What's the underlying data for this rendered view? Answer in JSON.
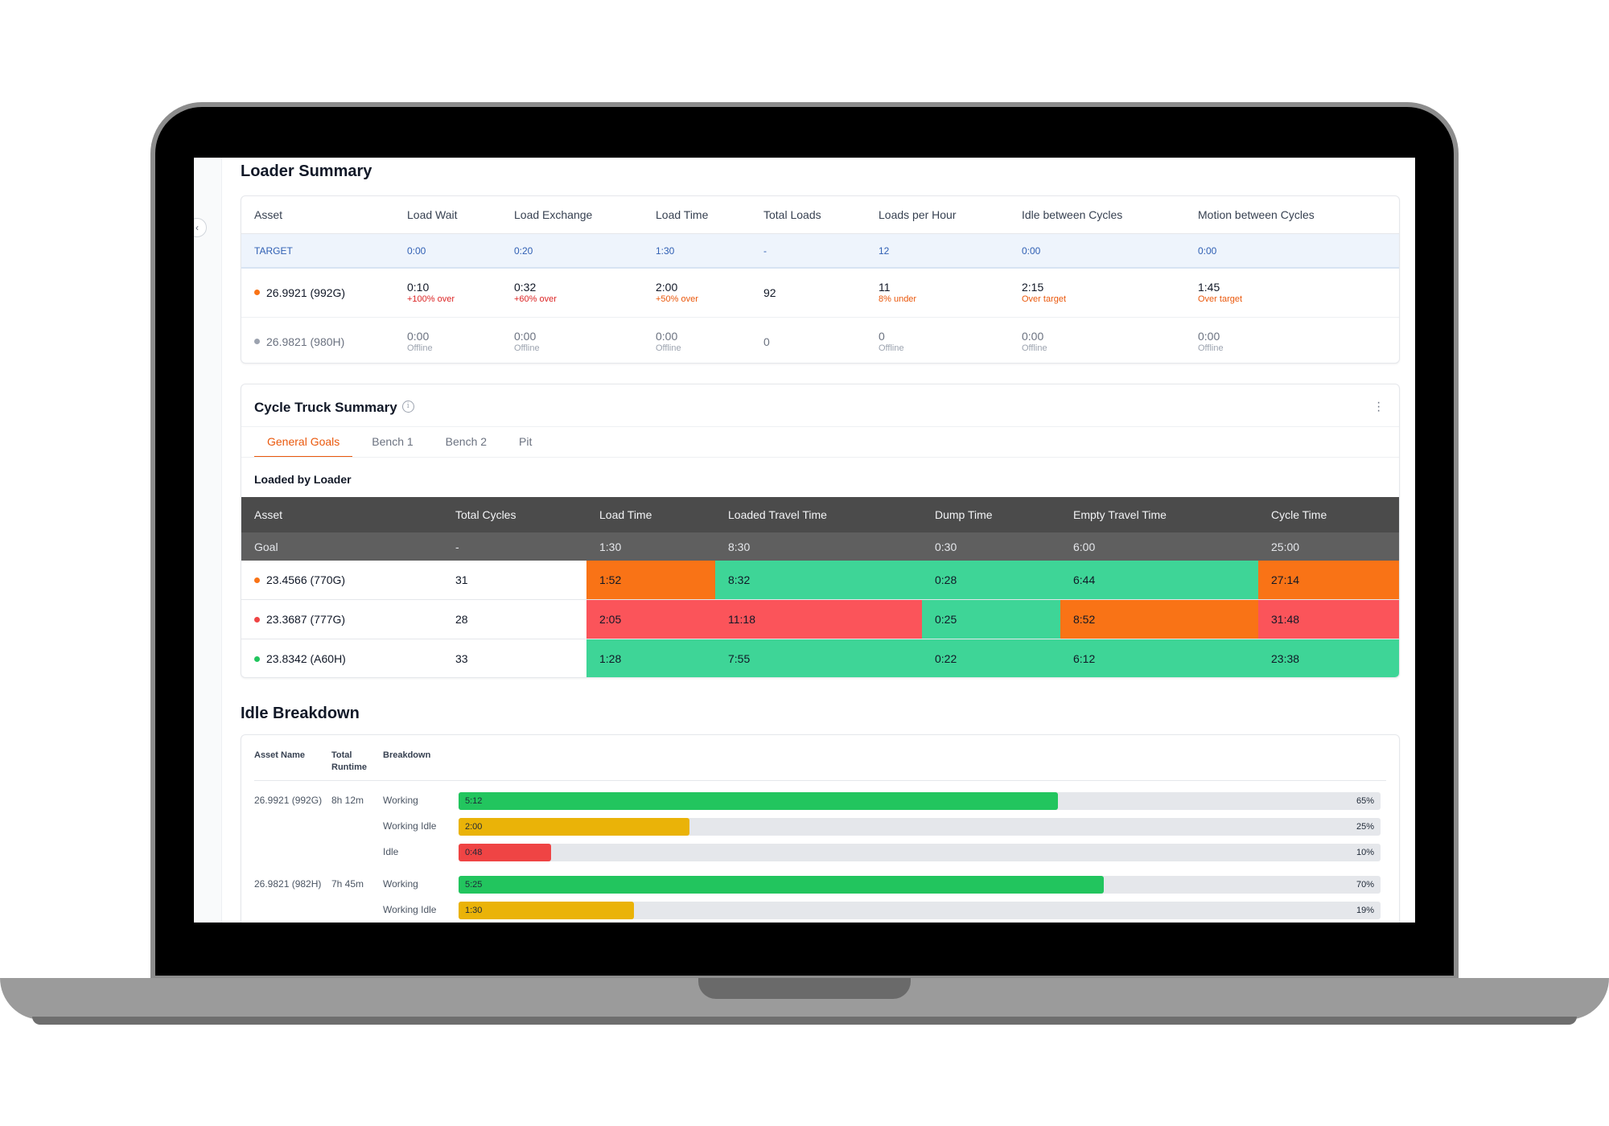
{
  "loader_summary": {
    "title": "Loader Summary",
    "columns": [
      "Asset",
      "Load Wait",
      "Load Exchange",
      "Load Time",
      "Total Loads",
      "Loads per Hour",
      "Idle between Cycles",
      "Motion between Cycles"
    ],
    "target": {
      "label": "TARGET",
      "values": [
        "0:00",
        "0:20",
        "1:30",
        "-",
        "12",
        "0:00",
        "0:00"
      ]
    },
    "rows": [
      {
        "asset": "26.9921 (992G)",
        "status_color": "#f97316",
        "cells": [
          {
            "value": "0:10",
            "note": "+100% over",
            "tone": "over"
          },
          {
            "value": "0:32",
            "note": "+60% over",
            "tone": "over"
          },
          {
            "value": "2:00",
            "note": "+50% over",
            "tone": "orange"
          },
          {
            "value": "92",
            "note": "",
            "tone": ""
          },
          {
            "value": "11",
            "note": "8% under",
            "tone": "orange"
          },
          {
            "value": "2:15",
            "note": "Over target",
            "tone": "orange"
          },
          {
            "value": "1:45",
            "note": "Over target",
            "tone": "orange"
          }
        ]
      },
      {
        "asset": "26.9821 (980H)",
        "status_color": "#9ca3af",
        "cells": [
          {
            "value": "0:00",
            "note": "Offline",
            "tone": "offline"
          },
          {
            "value": "0:00",
            "note": "Offline",
            "tone": "offline"
          },
          {
            "value": "0:00",
            "note": "Offline",
            "tone": "offline"
          },
          {
            "value": "0",
            "note": "",
            "tone": "offline"
          },
          {
            "value": "0",
            "note": "Offline",
            "tone": "offline"
          },
          {
            "value": "0:00",
            "note": "Offline",
            "tone": "offline"
          },
          {
            "value": "0:00",
            "note": "Offline",
            "tone": "offline"
          }
        ]
      }
    ]
  },
  "cycle_truck": {
    "title": "Cycle Truck Summary",
    "tabs": [
      "General Goals",
      "Bench 1",
      "Bench 2",
      "Pit"
    ],
    "active_tab": 0,
    "subtitle": "Loaded by Loader",
    "columns": [
      "Asset",
      "Total Cycles",
      "Load Time",
      "Loaded Travel Time",
      "Dump Time",
      "Empty Travel Time",
      "Cycle Time"
    ],
    "goal": [
      "Goal",
      "-",
      "1:30",
      "8:30",
      "0:30",
      "6:00",
      "25:00"
    ],
    "rows": [
      {
        "asset": "23.4566 (770G)",
        "dot": "#f97316",
        "cycles": "31",
        "cells": [
          "1:52",
          "8:32",
          "0:28",
          "6:44",
          "27:14"
        ],
        "status": [
          "orange",
          "green",
          "green",
          "green",
          "orange"
        ]
      },
      {
        "asset": "23.3687 (777G)",
        "dot": "#ef4444",
        "cycles": "28",
        "cells": [
          "2:05",
          "11:18",
          "0:25",
          "8:52",
          "31:48"
        ],
        "status": [
          "red",
          "red",
          "green",
          "orange",
          "red"
        ]
      },
      {
        "asset": "23.8342 (A60H)",
        "dot": "#22c55e",
        "cycles": "33",
        "cells": [
          "1:28",
          "7:55",
          "0:22",
          "6:12",
          "23:38"
        ],
        "status": [
          "green",
          "green",
          "green",
          "green",
          "green"
        ]
      }
    ]
  },
  "idle_breakdown": {
    "title": "Idle Breakdown",
    "headers": {
      "asset": "Asset Name",
      "runtime_1": "Total",
      "runtime_2": "Runtime",
      "breakdown": "Breakdown"
    },
    "assets": [
      {
        "name": "26.9921 (992G)",
        "runtime": "8h 12m",
        "bars": [
          {
            "label": "Working",
            "time": "5:12",
            "percent": 65,
            "percent_label": "65%",
            "kind": "green"
          },
          {
            "label": "Working Idle",
            "time": "2:00",
            "percent": 25,
            "percent_label": "25%",
            "kind": "yellow"
          },
          {
            "label": "Idle",
            "time": "0:48",
            "percent": 10,
            "percent_label": "10%",
            "kind": "red"
          }
        ]
      },
      {
        "name": "26.9821 (982H)",
        "runtime": "7h 45m",
        "bars": [
          {
            "label": "Working",
            "time": "5:25",
            "percent": 70,
            "percent_label": "70%",
            "kind": "green"
          },
          {
            "label": "Working Idle",
            "time": "1:30",
            "percent": 19,
            "percent_label": "19%",
            "kind": "yellow"
          }
        ]
      }
    ]
  },
  "icons": {
    "collapse": "chevron-left-icon",
    "info": "info-icon",
    "menu": "kebab-menu-icon"
  }
}
